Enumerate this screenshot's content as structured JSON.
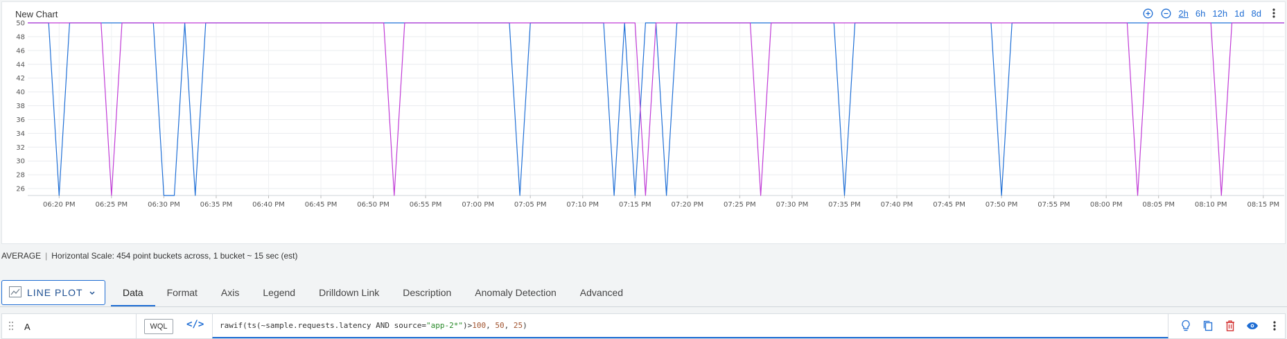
{
  "chart": {
    "title": "New Chart",
    "time_ranges": [
      "2h",
      "6h",
      "12h",
      "1d",
      "8d"
    ],
    "active_range": "2h"
  },
  "chart_data": {
    "type": "line",
    "title": "New Chart",
    "xlabel": "",
    "ylabel": "",
    "x_tick_labels": [
      "06:20 PM",
      "06:25 PM",
      "06:30 PM",
      "06:35 PM",
      "06:40 PM",
      "06:45 PM",
      "06:50 PM",
      "06:55 PM",
      "07:00 PM",
      "07:05 PM",
      "07:10 PM",
      "07:15 PM",
      "07:20 PM",
      "07:25 PM",
      "07:30 PM",
      "07:35 PM",
      "07:40 PM",
      "07:45 PM",
      "07:50 PM",
      "07:55 PM",
      "08:00 PM",
      "08:05 PM",
      "08:10 PM",
      "08:15 PM"
    ],
    "y_ticks": [
      26,
      28,
      30,
      32,
      34,
      36,
      38,
      40,
      42,
      44,
      46,
      48,
      50
    ],
    "ylim": [
      25,
      50
    ],
    "xlim": [
      "06:17 PM",
      "08:17 PM"
    ],
    "grid": true,
    "series": [
      {
        "color": "#1f6fd6",
        "points": [
          [
            "06:17 PM",
            50
          ],
          [
            "06:19 PM",
            50
          ],
          [
            "06:20 PM",
            25
          ],
          [
            "06:21 PM",
            50
          ],
          [
            "06:29 PM",
            50
          ],
          [
            "06:30 PM",
            25
          ],
          [
            "06:31 PM",
            25
          ],
          [
            "06:32 PM",
            50
          ],
          [
            "06:33 PM",
            25
          ],
          [
            "06:34 PM",
            50
          ],
          [
            "07:03 PM",
            50
          ],
          [
            "07:04 PM",
            25
          ],
          [
            "07:05 PM",
            50
          ],
          [
            "07:12 PM",
            50
          ],
          [
            "07:13 PM",
            25
          ],
          [
            "07:14 PM",
            50
          ],
          [
            "07:15 PM",
            25
          ],
          [
            "07:16 PM",
            50
          ],
          [
            "07:17 PM",
            50
          ],
          [
            "07:18 PM",
            25
          ],
          [
            "07:19 PM",
            50
          ],
          [
            "07:34 PM",
            50
          ],
          [
            "07:35 PM",
            25
          ],
          [
            "07:36 PM",
            50
          ],
          [
            "07:49 PM",
            50
          ],
          [
            "07:50 PM",
            25
          ],
          [
            "07:51 PM",
            50
          ],
          [
            "08:17 PM",
            50
          ]
        ]
      },
      {
        "color": "#c03ad6",
        "points": [
          [
            "06:17 PM",
            50
          ],
          [
            "06:24 PM",
            50
          ],
          [
            "06:25 PM",
            25
          ],
          [
            "06:26 PM",
            50
          ],
          [
            "06:51 PM",
            50
          ],
          [
            "06:52 PM",
            25
          ],
          [
            "06:53 PM",
            50
          ],
          [
            "07:15 PM",
            50
          ],
          [
            "07:16 PM",
            25
          ],
          [
            "07:17 PM",
            50
          ],
          [
            "07:26 PM",
            50
          ],
          [
            "07:27 PM",
            25
          ],
          [
            "07:28 PM",
            50
          ],
          [
            "08:02 PM",
            50
          ],
          [
            "08:03 PM",
            25
          ],
          [
            "08:04 PM",
            50
          ],
          [
            "08:10 PM",
            50
          ],
          [
            "08:11 PM",
            25
          ],
          [
            "08:12 PM",
            50
          ],
          [
            "08:17 PM",
            50
          ]
        ]
      }
    ]
  },
  "scale_info": {
    "mode": "AVERAGE",
    "separator": "|",
    "text": "Horizontal Scale: 454 point buckets across, 1 bucket ~ 15 sec (est)"
  },
  "toolbar": {
    "plot_type": "LINE PLOT",
    "tabs": [
      "Data",
      "Format",
      "Axis",
      "Legend",
      "Drilldown Link",
      "Description",
      "Anomaly Detection",
      "Advanced"
    ],
    "active_tab": "Data"
  },
  "query": {
    "label": "A",
    "mode_badge": "WQL",
    "code_toggle": "</>",
    "text_parts": [
      {
        "t": "rawif(ts(~sample.requests.latency AND source=",
        "c": ""
      },
      {
        "t": "\"app-2*\"",
        "c": "str"
      },
      {
        "t": ")>",
        "c": ""
      },
      {
        "t": "100",
        "c": "num"
      },
      {
        "t": ", ",
        "c": ""
      },
      {
        "t": "50",
        "c": "num"
      },
      {
        "t": ", ",
        "c": ""
      },
      {
        "t": "25",
        "c": "num"
      },
      {
        "t": ")",
        "c": ""
      }
    ]
  }
}
